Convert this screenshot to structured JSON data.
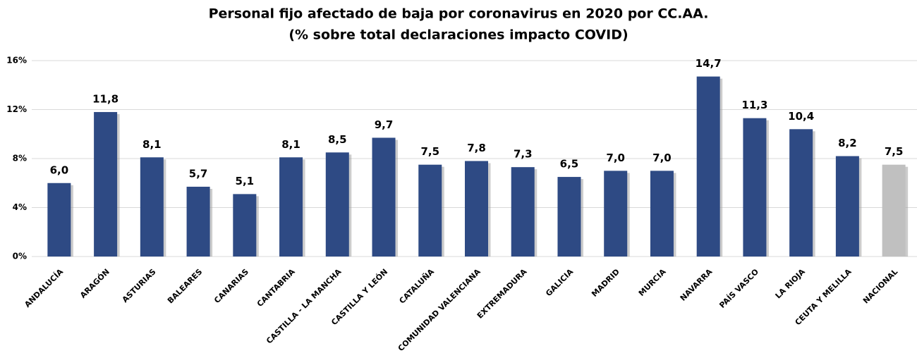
{
  "chart_data": {
    "type": "bar",
    "title": "Personal fijo afectado de baja por coronavirus en 2020 por CC.AA.",
    "subtitle": "(% sobre total declaraciones impacto COVID)",
    "categories": [
      "ANDALUCÍA",
      "ARAGÓN",
      "ASTURIAS",
      "BALEARES",
      "CANARIAS",
      "CANTABRIA",
      "CASTILLA - LA MANCHA",
      "CASTILLA Y LEÓN",
      "CATALUÑA",
      "COMUNIDAD VALENCIANA",
      "EXTREMADURA",
      "GALICIA",
      "MADRID",
      "MURCIA",
      "NAVARRA",
      "PAÍS VASCO",
      "LA RIOJA",
      "CEUTA Y MELILLA",
      "NACIONAL"
    ],
    "values": [
      6.0,
      11.8,
      8.1,
      5.7,
      5.1,
      8.1,
      8.5,
      9.7,
      7.5,
      7.8,
      7.3,
      6.5,
      7.0,
      7.0,
      14.7,
      11.3,
      10.4,
      8.2,
      7.5
    ],
    "value_labels": [
      "6,0",
      "11,8",
      "8,1",
      "5,7",
      "5,1",
      "8,1",
      "8,5",
      "9,7",
      "7,5",
      "7,8",
      "7,3",
      "6,5",
      "7,0",
      "7,0",
      "14,7",
      "11,3",
      "10,4",
      "8,2",
      "7,5"
    ],
    "colors": [
      "#2e4a84",
      "#2e4a84",
      "#2e4a84",
      "#2e4a84",
      "#2e4a84",
      "#2e4a84",
      "#2e4a84",
      "#2e4a84",
      "#2e4a84",
      "#2e4a84",
      "#2e4a84",
      "#2e4a84",
      "#2e4a84",
      "#2e4a84",
      "#2e4a84",
      "#2e4a84",
      "#2e4a84",
      "#2e4a84",
      "#c0c0c0"
    ],
    "ylim": [
      0,
      16
    ],
    "yticks": [
      {
        "value": 0,
        "label": "0%"
      },
      {
        "value": 4,
        "label": "4%"
      },
      {
        "value": 8,
        "label": "8%"
      },
      {
        "value": 12,
        "label": "12%"
      },
      {
        "value": 16,
        "label": "16%"
      }
    ],
    "grid": true
  }
}
